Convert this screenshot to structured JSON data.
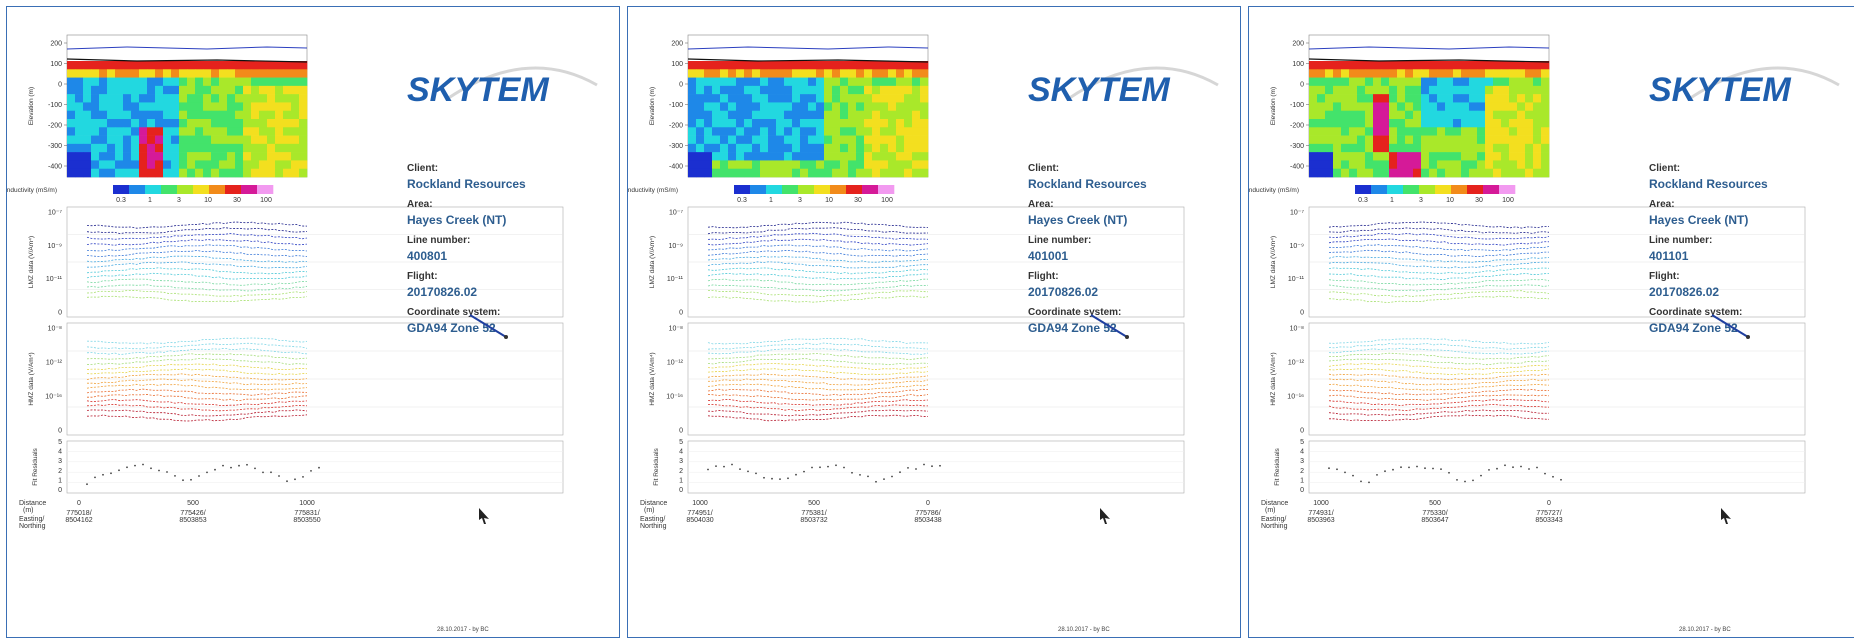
{
  "colors": {
    "border": "#3a6fb5",
    "brand": "#1f5fae",
    "value_text": "#2d5d8f",
    "colormap": [
      "#1b2fd0",
      "#1e88e8",
      "#22d8e0",
      "#43e36b",
      "#a9e82a",
      "#f3df1f",
      "#f28b1a",
      "#e5221d",
      "#d51a98",
      "#f29af0"
    ]
  },
  "panels": [
    {
      "logo_text": "SKYTEM",
      "info": [
        {
          "label": "Client:",
          "value": "Rockland Resources"
        },
        {
          "label": "Area:",
          "value": "Hayes Creek (NT)"
        },
        {
          "label": "Line number:",
          "value": "400801"
        },
        {
          "label": "Flight:",
          "value": "20170826.02"
        },
        {
          "label": "Coordinate system:",
          "value": "GDA94 Zone 52"
        }
      ],
      "footer": "28.10.2017 - by BC",
      "distance_ticks": [
        "0",
        "500",
        "1000"
      ],
      "coord_ticks": [
        [
          "775018/",
          "8504162"
        ],
        [
          "775426/",
          "8503853"
        ],
        [
          "775831/",
          "8503550"
        ]
      ],
      "anomaly": "conductor-deep",
      "bias": [
        0.2,
        0.2,
        0.3,
        0.35
      ]
    },
    {
      "logo_text": "SKYTEM",
      "info": [
        {
          "label": "Client:",
          "value": "Rockland Resources"
        },
        {
          "label": "Area:",
          "value": "Hayes Creek (NT)"
        },
        {
          "label": "Line number:",
          "value": "401001"
        },
        {
          "label": "Flight:",
          "value": "20170826.02"
        },
        {
          "label": "Coordinate system:",
          "value": "GDA94 Zone 52"
        }
      ],
      "footer": "28.10.2017 - by BC",
      "distance_ticks": [
        "1000",
        "500",
        "0"
      ],
      "coord_ticks": [
        [
          "774951/",
          "8504030"
        ],
        [
          "775381/",
          "8503732"
        ],
        [
          "775786/",
          "8503438"
        ]
      ],
      "anomaly": "none",
      "bias": [
        0.25,
        0.25,
        0.35,
        0.4
      ]
    },
    {
      "logo_text": "SKYTEM",
      "info": [
        {
          "label": "Client:",
          "value": "Rockland Resources"
        },
        {
          "label": "Area:",
          "value": "Hayes Creek (NT)"
        },
        {
          "label": "Line number:",
          "value": "401101"
        },
        {
          "label": "Flight:",
          "value": "20170826.02"
        },
        {
          "label": "Coordinate system:",
          "value": "GDA94 Zone 52"
        }
      ],
      "footer": "28.10.2017 - by BC",
      "distance_ticks": [
        "1000",
        "500",
        "0"
      ],
      "coord_ticks": [
        [
          "774931/",
          "8503963"
        ],
        [
          "775330/",
          "8503647"
        ],
        [
          "775727/",
          "8503343"
        ]
      ],
      "anomaly": "conductor-mid",
      "bias": [
        0.4,
        0.35,
        0.3,
        0.35
      ]
    }
  ],
  "chart_data": [
    {
      "type": "heatmap",
      "title": "",
      "ylabel": "Elevation (m)",
      "yticks": [
        "200",
        "100",
        "0",
        "-100",
        "-200",
        "-300",
        "-400"
      ],
      "ylim": [
        -450,
        230
      ],
      "colorbar_label": "Conductivity (mS/m)",
      "colorbar_ticks": [
        "0.3",
        "1",
        "3",
        "10",
        "30",
        "100"
      ]
    },
    {
      "type": "line",
      "ylabel": "LMZ data (V/Am⁴)",
      "yticks": [
        "10⁻⁷",
        "10⁻⁹",
        "10⁻¹¹",
        "0"
      ],
      "log_scale": true,
      "series_count": 14
    },
    {
      "type": "line",
      "ylabel": "HMZ data (V/Am⁴)",
      "yticks": [
        "10⁻⁸",
        "10⁻¹²",
        "10⁻¹⁶",
        "0"
      ],
      "log_scale": true,
      "series_count": 16
    },
    {
      "type": "scatter",
      "ylabel": "Fit Residuals",
      "yticks": [
        "5",
        "4",
        "3",
        "2",
        "1",
        "0"
      ],
      "ylim": [
        0,
        5
      ]
    }
  ],
  "axis_labels": {
    "distance": [
      "Distance",
      "(m)"
    ],
    "easting": [
      "Easting/",
      "Northing"
    ]
  }
}
